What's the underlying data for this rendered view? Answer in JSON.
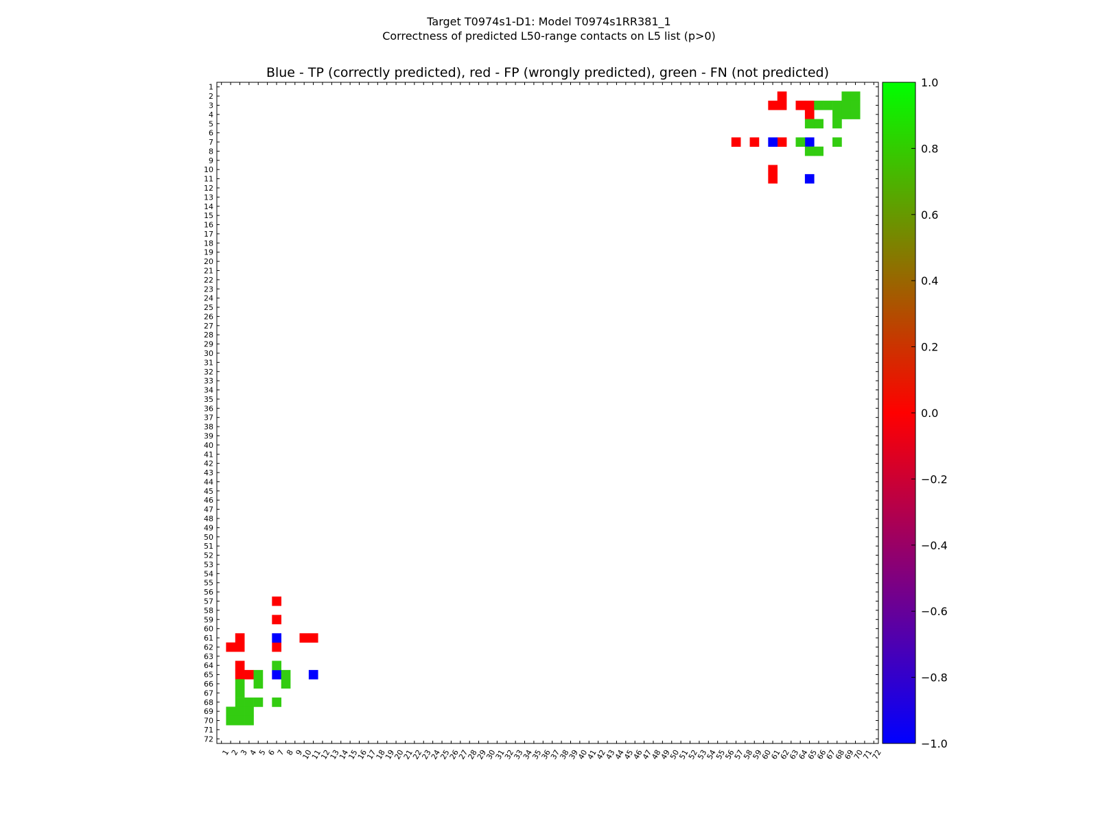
{
  "figure": {
    "title_line1": "Target T0974s1-D1: Model T0974s1RR381_1",
    "title_line2": "Correctness of predicted L50-range contacts on L5 list (p>0)"
  },
  "chart_data": {
    "type": "heatmap",
    "title": "Blue - TP (correctly predicted), red - FP (wrongly predicted), green - FN (not predicted)",
    "xlabel": "",
    "ylabel": "",
    "x_range": [
      1,
      72
    ],
    "y_range": [
      1,
      72
    ],
    "x_ticks": [
      1,
      2,
      3,
      4,
      5,
      6,
      7,
      8,
      9,
      10,
      11,
      12,
      13,
      14,
      15,
      16,
      17,
      18,
      19,
      20,
      21,
      22,
      23,
      24,
      25,
      26,
      27,
      28,
      29,
      30,
      31,
      32,
      33,
      34,
      35,
      36,
      37,
      38,
      39,
      40,
      41,
      42,
      43,
      44,
      45,
      46,
      47,
      48,
      49,
      50,
      51,
      52,
      53,
      54,
      55,
      56,
      57,
      58,
      59,
      60,
      61,
      62,
      63,
      64,
      65,
      66,
      67,
      68,
      69,
      70,
      71,
      72
    ],
    "y_ticks": [
      1,
      2,
      3,
      4,
      5,
      6,
      7,
      8,
      9,
      10,
      11,
      12,
      13,
      14,
      15,
      16,
      17,
      18,
      19,
      20,
      21,
      22,
      23,
      24,
      25,
      26,
      27,
      28,
      29,
      30,
      31,
      32,
      33,
      34,
      35,
      36,
      37,
      38,
      39,
      40,
      41,
      42,
      43,
      44,
      45,
      46,
      47,
      48,
      49,
      50,
      51,
      52,
      53,
      54,
      55,
      56,
      57,
      58,
      59,
      60,
      61,
      62,
      63,
      64,
      65,
      66,
      67,
      68,
      69,
      70,
      71,
      72
    ],
    "colorbar": {
      "min": -1.0,
      "max": 1.0,
      "ticks": [
        "−1.0",
        "−0.8",
        "−0.6",
        "−0.4",
        "−0.2",
        "0.0",
        "0.2",
        "0.4",
        "0.6",
        "0.8",
        "1.0"
      ],
      "stops": [
        {
          "value": -1.0,
          "color": "#0000ff"
        },
        {
          "value": 0.0,
          "color": "#ff0000"
        },
        {
          "value": 1.0,
          "color": "#00ff00"
        }
      ]
    },
    "colors": {
      "TP": "#0000ff",
      "FP": "#ff0000",
      "FN": "#33cc11"
    },
    "cells": [
      {
        "x": 62,
        "y": 2,
        "cls": "FP"
      },
      {
        "x": 61,
        "y": 3,
        "cls": "FP"
      },
      {
        "x": 62,
        "y": 3,
        "cls": "FP"
      },
      {
        "x": 64,
        "y": 3,
        "cls": "FP"
      },
      {
        "x": 65,
        "y": 3,
        "cls": "FP"
      },
      {
        "x": 65,
        "y": 4,
        "cls": "FP"
      },
      {
        "x": 57,
        "y": 7,
        "cls": "FP"
      },
      {
        "x": 59,
        "y": 7,
        "cls": "FP"
      },
      {
        "x": 62,
        "y": 7,
        "cls": "FP"
      },
      {
        "x": 61,
        "y": 10,
        "cls": "FP"
      },
      {
        "x": 61,
        "y": 11,
        "cls": "FP"
      },
      {
        "x": 61,
        "y": 7,
        "cls": "TP"
      },
      {
        "x": 65,
        "y": 7,
        "cls": "TP"
      },
      {
        "x": 65,
        "y": 11,
        "cls": "TP"
      },
      {
        "x": 69,
        "y": 2,
        "cls": "FN"
      },
      {
        "x": 70,
        "y": 2,
        "cls": "FN"
      },
      {
        "x": 66,
        "y": 3,
        "cls": "FN"
      },
      {
        "x": 67,
        "y": 3,
        "cls": "FN"
      },
      {
        "x": 68,
        "y": 3,
        "cls": "FN"
      },
      {
        "x": 69,
        "y": 3,
        "cls": "FN"
      },
      {
        "x": 70,
        "y": 3,
        "cls": "FN"
      },
      {
        "x": 68,
        "y": 4,
        "cls": "FN"
      },
      {
        "x": 69,
        "y": 4,
        "cls": "FN"
      },
      {
        "x": 70,
        "y": 4,
        "cls": "FN"
      },
      {
        "x": 65,
        "y": 5,
        "cls": "FN"
      },
      {
        "x": 66,
        "y": 5,
        "cls": "FN"
      },
      {
        "x": 68,
        "y": 5,
        "cls": "FN"
      },
      {
        "x": 64,
        "y": 7,
        "cls": "FN"
      },
      {
        "x": 68,
        "y": 7,
        "cls": "FN"
      },
      {
        "x": 65,
        "y": 8,
        "cls": "FN"
      },
      {
        "x": 66,
        "y": 8,
        "cls": "FN"
      },
      {
        "x": 7,
        "y": 57,
        "cls": "FP"
      },
      {
        "x": 7,
        "y": 59,
        "cls": "FP"
      },
      {
        "x": 3,
        "y": 61,
        "cls": "FP"
      },
      {
        "x": 10,
        "y": 61,
        "cls": "FP"
      },
      {
        "x": 11,
        "y": 61,
        "cls": "FP"
      },
      {
        "x": 2,
        "y": 62,
        "cls": "FP"
      },
      {
        "x": 3,
        "y": 62,
        "cls": "FP"
      },
      {
        "x": 7,
        "y": 62,
        "cls": "FP"
      },
      {
        "x": 3,
        "y": 64,
        "cls": "FP"
      },
      {
        "x": 3,
        "y": 65,
        "cls": "FP"
      },
      {
        "x": 4,
        "y": 65,
        "cls": "FP"
      },
      {
        "x": 7,
        "y": 61,
        "cls": "TP"
      },
      {
        "x": 7,
        "y": 65,
        "cls": "TP"
      },
      {
        "x": 11,
        "y": 65,
        "cls": "TP"
      },
      {
        "x": 7,
        "y": 64,
        "cls": "FN"
      },
      {
        "x": 5,
        "y": 65,
        "cls": "FN"
      },
      {
        "x": 8,
        "y": 65,
        "cls": "FN"
      },
      {
        "x": 3,
        "y": 66,
        "cls": "FN"
      },
      {
        "x": 5,
        "y": 66,
        "cls": "FN"
      },
      {
        "x": 8,
        "y": 66,
        "cls": "FN"
      },
      {
        "x": 3,
        "y": 67,
        "cls": "FN"
      },
      {
        "x": 3,
        "y": 68,
        "cls": "FN"
      },
      {
        "x": 4,
        "y": 68,
        "cls": "FN"
      },
      {
        "x": 5,
        "y": 68,
        "cls": "FN"
      },
      {
        "x": 7,
        "y": 68,
        "cls": "FN"
      },
      {
        "x": 2,
        "y": 69,
        "cls": "FN"
      },
      {
        "x": 3,
        "y": 69,
        "cls": "FN"
      },
      {
        "x": 4,
        "y": 69,
        "cls": "FN"
      },
      {
        "x": 2,
        "y": 70,
        "cls": "FN"
      },
      {
        "x": 3,
        "y": 70,
        "cls": "FN"
      },
      {
        "x": 4,
        "y": 70,
        "cls": "FN"
      }
    ]
  }
}
